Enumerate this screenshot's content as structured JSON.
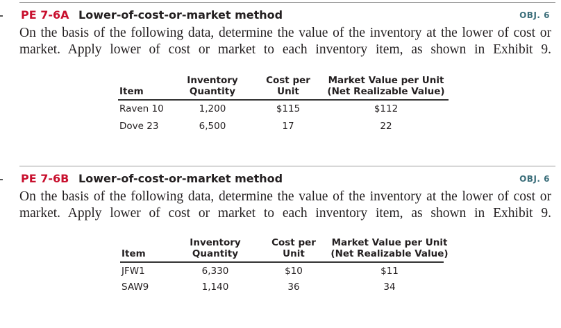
{
  "exercises": [
    {
      "id": "PE 7-6A",
      "title": "Lower-of-cost-or-market method",
      "obj": "OBJ. 6",
      "text": "On the basis of the following data, determine the value of the inventory at the lower of cost or market. Apply lower of cost or market to each inventory item, as shown in Exhibit 9.",
      "table": {
        "headers": [
          [
            "Item"
          ],
          [
            "Inventory",
            "Quantity"
          ],
          [
            "Cost per",
            "Unit"
          ],
          [
            "Market Value per Unit",
            "(Net Realizable Value)"
          ]
        ],
        "rows": [
          [
            "Raven 10",
            "1,200",
            "$115",
            "$112"
          ],
          [
            "Dove 23",
            "6,500",
            "17",
            "22"
          ]
        ]
      }
    },
    {
      "id": "PE 7-6B",
      "title": "Lower-of-cost-or-market method",
      "obj": "OBJ. 6",
      "text": "On the basis of the following data, determine the value of the inventory at the lower of cost or market. Apply lower of cost or market to each inventory item, as shown in Exhibit 9.",
      "table": {
        "headers": [
          [
            "Item"
          ],
          [
            "Inventory",
            "Quantity"
          ],
          [
            "Cost per",
            "Unit"
          ],
          [
            "Market Value per Unit",
            "(Net Realizable Value)"
          ]
        ],
        "rows": [
          [
            "JFW1",
            "6,330",
            "$10",
            "$11"
          ],
          [
            "SAW9",
            "1,140",
            "36",
            "34"
          ]
        ]
      }
    }
  ]
}
